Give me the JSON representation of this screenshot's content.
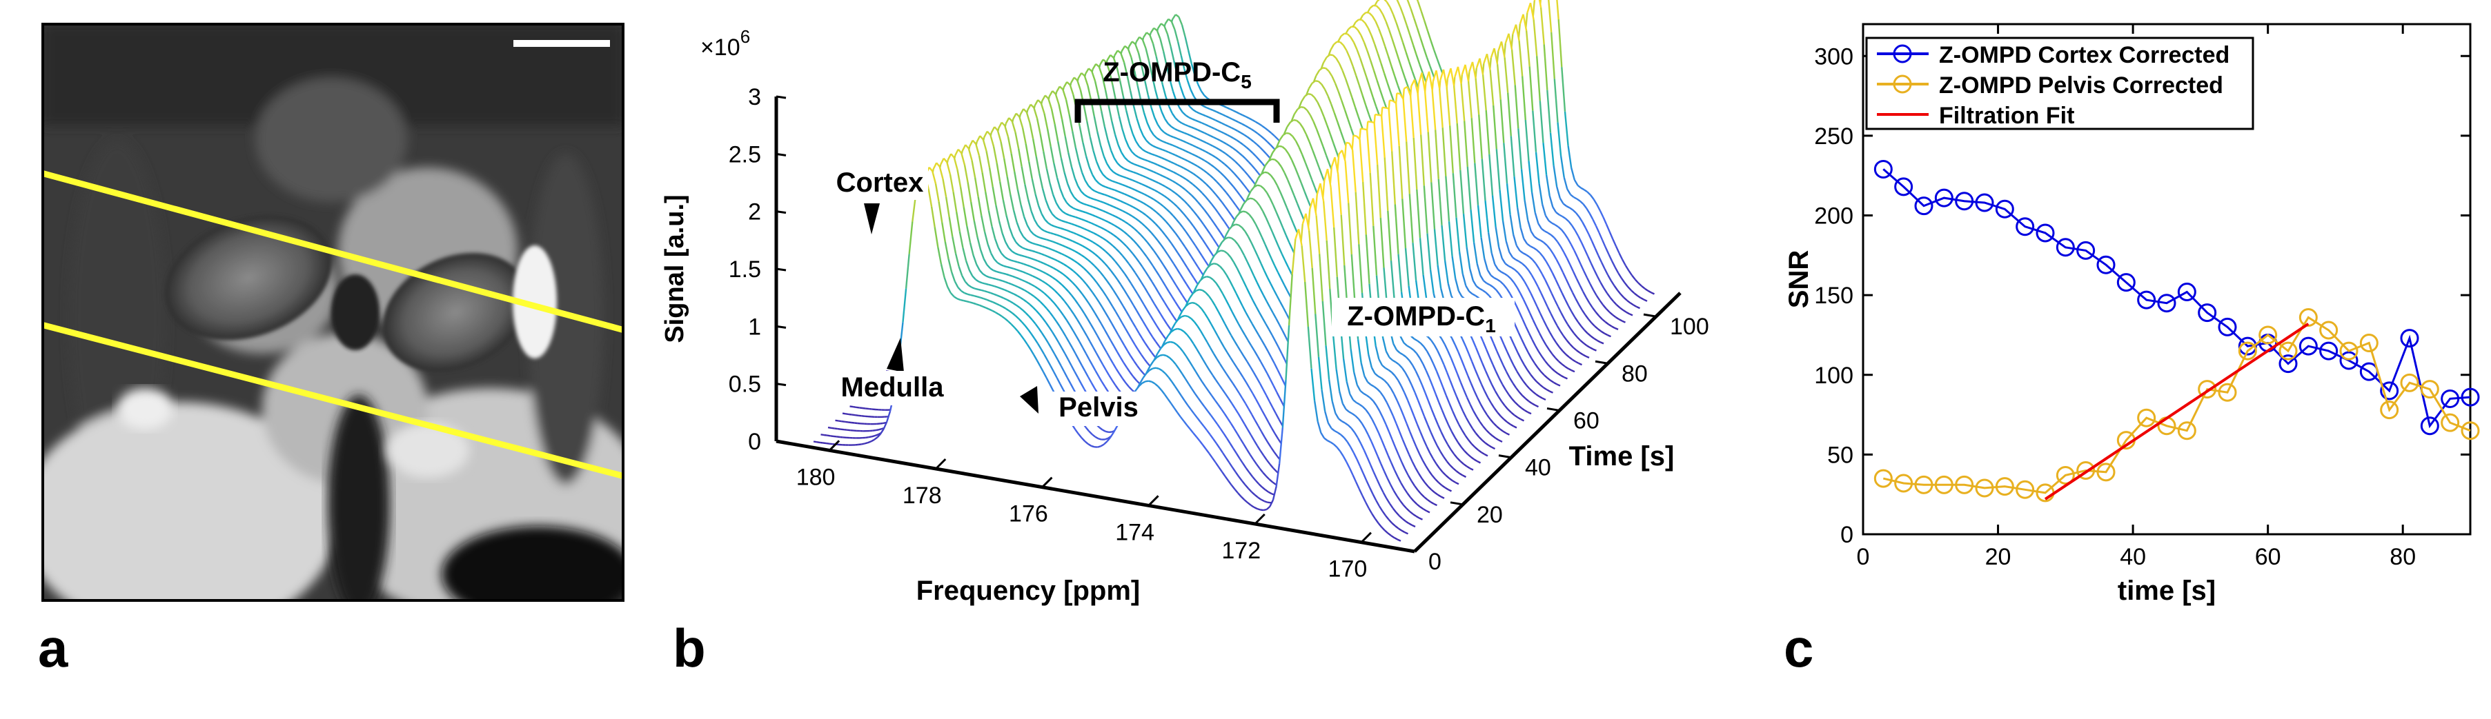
{
  "panels": {
    "a": {
      "label": "a"
    },
    "b": {
      "label": "b"
    },
    "c": {
      "label": "c"
    }
  },
  "colors": {
    "yellow_line": "#ffff33",
    "cortex": "#0000e0",
    "pelvis": "#e8b020",
    "fit": "#ee0000"
  },
  "chart_data": [
    {
      "type": "waterfall",
      "panel": "b",
      "scale_label": "×10",
      "scale_exp": "6",
      "ylabel": "Signal [a.u.]",
      "xlabel": "Frequency [ppm]",
      "zlabel": "Time [s]",
      "y_ticks": [
        "0",
        "0.5",
        "1",
        "1.5",
        "2",
        "2.5",
        "3"
      ],
      "x_ticks": [
        "180",
        "178",
        "176",
        "174",
        "172",
        "170"
      ],
      "z_ticks": [
        "0",
        "20",
        "40",
        "60",
        "80",
        "100"
      ],
      "ylim": [
        0,
        3
      ],
      "xlim": [
        181,
        169
      ],
      "zlim": [
        0,
        110
      ],
      "annotations": {
        "cortex": "Cortex",
        "medulla": "Medulla",
        "pelvis": "Pelvis",
        "c5_main": "Z-OMPD-C",
        "c5_sub": "5",
        "c1_main": "Z-OMPD-C",
        "c1_sub": "1"
      },
      "peaks": [
        {
          "name": "C5 cortex",
          "ppm": 178.3,
          "amp": 1.65
        },
        {
          "name": "C5 medulla",
          "ppm": 177.9,
          "amp": 0.55
        },
        {
          "name": "C5 pelvis",
          "ppm": 174.1,
          "amp": 1.45
        },
        {
          "name": "C1",
          "ppm": 171.2,
          "amp": 2.2
        }
      ]
    },
    {
      "type": "line",
      "panel": "c",
      "xlabel": "time [s]",
      "ylabel": "SNR",
      "xlim": [
        0,
        90
      ],
      "ylim": [
        0,
        320
      ],
      "x_ticks": [
        "0",
        "20",
        "40",
        "60",
        "80"
      ],
      "x_tick_values": [
        0,
        20,
        40,
        60,
        80
      ],
      "y_ticks": [
        "0",
        "50",
        "100",
        "150",
        "200",
        "250",
        "300"
      ],
      "y_tick_values": [
        0,
        50,
        100,
        150,
        200,
        250,
        300
      ],
      "legend_position": "top-left",
      "series": [
        {
          "name": "Z-OMPD Cortex Corrected",
          "color": "#0000e0",
          "marker": "circle",
          "x": [
            3,
            6,
            9,
            12,
            15,
            18,
            21,
            24,
            27,
            30,
            33,
            36,
            39,
            42,
            45,
            48,
            51,
            54,
            57,
            60,
            63,
            66,
            69,
            72,
            75,
            78,
            81,
            84,
            87,
            90
          ],
          "y": [
            229,
            218,
            206,
            211,
            209,
            208,
            204,
            193,
            189,
            180,
            178,
            169,
            158,
            147,
            145,
            152,
            139,
            130,
            118,
            120,
            107,
            118,
            115,
            109,
            102,
            90,
            123,
            68,
            85,
            86
          ]
        },
        {
          "name": "Z-OMPD Pelvis Corrected",
          "color": "#e8b020",
          "marker": "circle",
          "x": [
            3,
            6,
            9,
            12,
            15,
            18,
            21,
            24,
            27,
            30,
            33,
            36,
            39,
            42,
            45,
            48,
            51,
            54,
            57,
            60,
            63,
            66,
            69,
            72,
            75,
            78,
            81,
            84,
            87,
            90
          ],
          "y": [
            35,
            32,
            31,
            31,
            31,
            29,
            30,
            28,
            26,
            37,
            40,
            39,
            59,
            73,
            68,
            65,
            91,
            89,
            115,
            125,
            115,
            136,
            128,
            115,
            120,
            78,
            95,
            91,
            70,
            65
          ]
        },
        {
          "name": "Filtration Fit",
          "color": "#ee0000",
          "marker": "none",
          "x": [
            27,
            66
          ],
          "y": [
            22,
            132
          ]
        }
      ]
    }
  ]
}
